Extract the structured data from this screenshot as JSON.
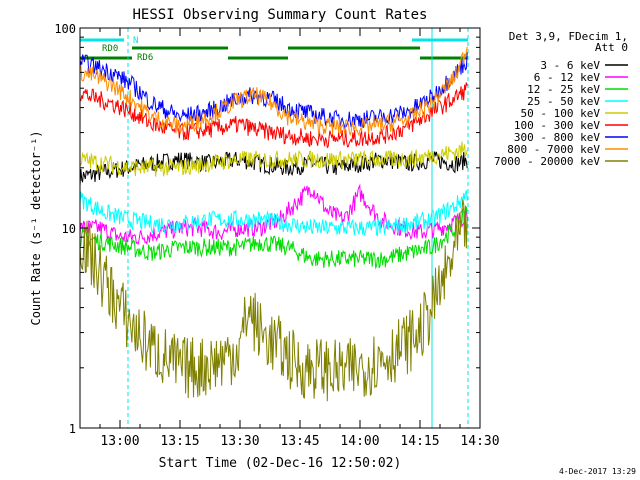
{
  "chart_data": {
    "type": "line",
    "title": "HESSI Observing Summary Count Rates",
    "xlabel": "Start Time (02-Dec-16 12:50:02)",
    "ylabel": "Count Rate (s⁻¹ detector⁻¹)",
    "yscale": "log",
    "xlim_minutes_after_start": [
      0,
      100
    ],
    "ylim": [
      1,
      100
    ],
    "x_ticks": [
      "13:00",
      "13:15",
      "13:30",
      "13:45",
      "14:00",
      "14:15",
      "14:30"
    ],
    "x_tick_minutes": [
      10,
      25,
      40,
      55,
      70,
      85,
      100
    ],
    "y_tick_labels": [
      "1",
      "10",
      "100"
    ],
    "y_ticks": [
      1,
      10,
      100
    ],
    "legend_header": [
      "Det 3,9, FDecim 1,",
      "Att 0"
    ],
    "legend_position": "right",
    "footer_date": "4-Dec-2017 13:29",
    "flags": [
      {
        "label": "RD0",
        "color": "#00e5e5"
      },
      {
        "label": "N",
        "color": "#00e5e5"
      },
      {
        "label": "RD6",
        "color": "#008000"
      }
    ],
    "series": [
      {
        "name": "3 - 6 keV",
        "color": "#000000",
        "x": [
          0,
          6,
          12,
          18,
          25,
          32,
          40,
          45,
          52,
          58,
          64,
          70,
          76,
          82,
          88,
          94,
          97
        ],
        "y": [
          18,
          19,
          20,
          21,
          22,
          21,
          22,
          21,
          20,
          21,
          20,
          21,
          22,
          21,
          22,
          21,
          22
        ]
      },
      {
        "name": "6 - 12 keV",
        "color": "#ff00ff",
        "x": [
          0,
          5,
          10,
          15,
          20,
          25,
          30,
          35,
          40,
          45,
          50,
          55,
          58,
          62,
          66,
          70,
          75,
          80,
          85,
          90,
          95,
          97
        ],
        "y": [
          10,
          10,
          9,
          9,
          9.5,
          10,
          10,
          9.5,
          10,
          10,
          11,
          14,
          16,
          12,
          11,
          15,
          11,
          10,
          9.5,
          10,
          11,
          12
        ]
      },
      {
        "name": "12 - 25 keV",
        "color": "#00dd00",
        "x": [
          0,
          6,
          12,
          18,
          25,
          32,
          40,
          45,
          52,
          58,
          64,
          70,
          76,
          82,
          88,
          94,
          97
        ],
        "y": [
          9,
          8.5,
          8,
          7.5,
          8,
          8,
          8,
          8.5,
          8,
          7,
          7,
          7,
          7,
          7.5,
          8,
          10,
          13
        ]
      },
      {
        "name": "25 - 50 keV",
        "color": "#00ffff",
        "x": [
          0,
          6,
          12,
          18,
          25,
          32,
          40,
          45,
          52,
          58,
          64,
          70,
          76,
          82,
          88,
          94,
          97
        ],
        "y": [
          14,
          12,
          11,
          10.5,
          10.5,
          11,
          11,
          11,
          10.5,
          10,
          10,
          10,
          10,
          10.5,
          11,
          13,
          15
        ]
      },
      {
        "name": "50 - 100 keV",
        "color": "#cccc00",
        "x": [
          0,
          6,
          12,
          18,
          25,
          32,
          40,
          45,
          52,
          58,
          64,
          70,
          76,
          82,
          88,
          94,
          97
        ],
        "y": [
          22,
          21,
          20,
          20,
          20,
          21,
          22,
          22,
          22,
          22,
          22,
          22,
          22,
          22,
          23,
          24,
          25
        ]
      },
      {
        "name": "100 - 300 keV",
        "color": "#ff0000",
        "x": [
          0,
          3,
          8,
          13,
          18,
          25,
          32,
          40,
          44,
          48,
          52,
          58,
          64,
          70,
          76,
          82,
          88,
          94,
          97
        ],
        "y": [
          48,
          45,
          42,
          38,
          33,
          30,
          31,
          33,
          31,
          30,
          29,
          28,
          28,
          28,
          29,
          32,
          38,
          45,
          50
        ]
      },
      {
        "name": "300 - 800 keV",
        "color": "#0000ff",
        "x": [
          0,
          3,
          8,
          13,
          18,
          25,
          32,
          40,
          44,
          48,
          52,
          58,
          64,
          70,
          76,
          82,
          88,
          94,
          97
        ],
        "y": [
          68,
          65,
          60,
          52,
          42,
          36,
          38,
          45,
          46,
          44,
          40,
          37,
          35,
          35,
          36,
          38,
          45,
          60,
          70
        ]
      },
      {
        "name": "800 - 7000 keV",
        "color": "#ff8c00",
        "x": [
          0,
          3,
          8,
          13,
          18,
          25,
          32,
          40,
          44,
          48,
          52,
          58,
          64,
          70,
          76,
          82,
          88,
          94,
          97
        ],
        "y": [
          60,
          58,
          52,
          44,
          36,
          32,
          36,
          44,
          46,
          42,
          36,
          33,
          32,
          32,
          33,
          35,
          42,
          58,
          82
        ]
      },
      {
        "name": "7000 - 20000 keV",
        "color": "#808000",
        "x": [
          0,
          3,
          6,
          10,
          14,
          18,
          22,
          25,
          30,
          35,
          40,
          42,
          45,
          50,
          55,
          60,
          65,
          70,
          75,
          80,
          85,
          88,
          91,
          94,
          97
        ],
        "y": [
          9,
          7,
          5.5,
          4,
          3,
          2.5,
          2.2,
          2,
          2,
          2.2,
          2.5,
          4,
          3,
          2.5,
          2,
          2,
          1.9,
          2,
          2.2,
          2.5,
          3,
          4,
          5.5,
          8,
          11
        ]
      }
    ]
  }
}
